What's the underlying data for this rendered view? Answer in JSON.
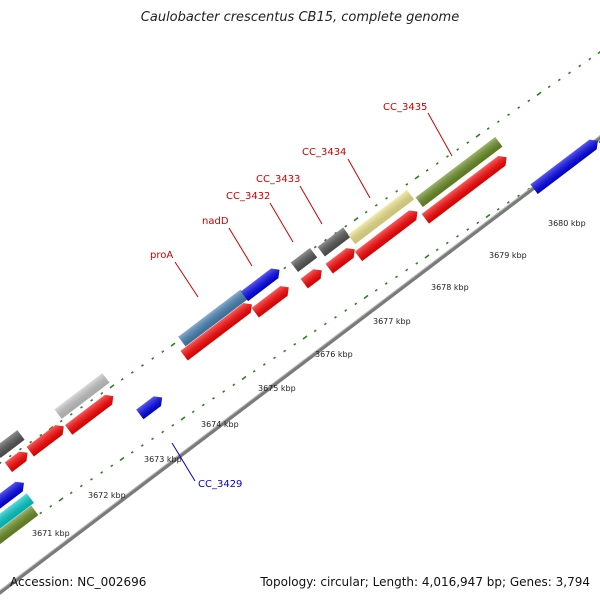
{
  "title": "Caulobacter crescentus CB15, complete genome",
  "footer": {
    "accession": "Accession: NC_002696",
    "summary": "Topology: circular; Length: 4,016,947 bp; Genes: 3,794"
  },
  "ruler_labels": [
    "3671 kbp",
    "3672 kbp",
    "3673 kbp",
    "3674 kbp",
    "3675 kbp",
    "3676 kbp",
    "3677 kbp",
    "3678 kbp",
    "3679 kbp",
    "3680 kbp"
  ],
  "gene_labels": [
    {
      "text": "proA",
      "color": "#cc0000"
    },
    {
      "text": "nadD",
      "color": "#cc0000"
    },
    {
      "text": "CC_3432",
      "color": "#cc0000"
    },
    {
      "text": "CC_3433",
      "color": "#cc0000"
    },
    {
      "text": "CC_3434",
      "color": "#cc0000"
    },
    {
      "text": "CC_3435",
      "color": "#cc0000"
    },
    {
      "text": "CC_3429",
      "color": "#0000cc"
    }
  ],
  "colors": {
    "backbone": "#8a8a8a",
    "tick": "#2e7d1e",
    "cds": "#ff0000",
    "blue": "#0000ee",
    "steelblue": "#4682b4",
    "gray": "#555555",
    "lightgray": "#c8c8c8",
    "khaki": "#f0e68c",
    "olive": "#6b8e23",
    "cyan": "#00cccc"
  }
}
